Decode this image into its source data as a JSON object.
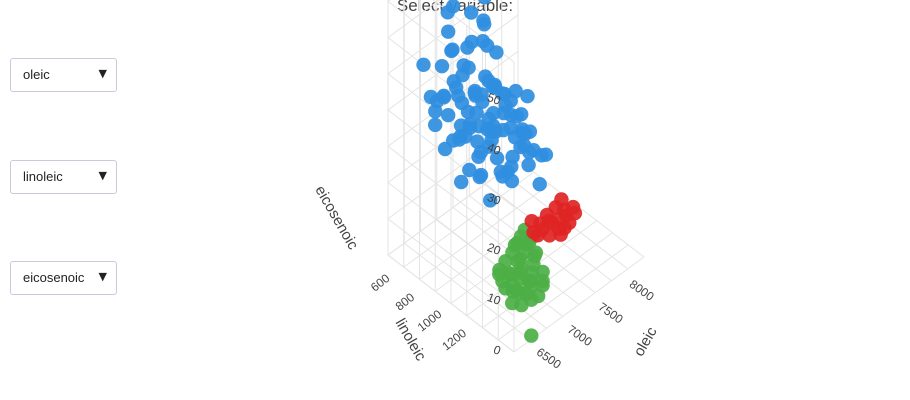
{
  "page_title": "Select variable:",
  "dropdowns": [
    {
      "selected": "oleic"
    },
    {
      "selected": "linoleic"
    },
    {
      "selected": "eicosenoic"
    }
  ],
  "icons": {
    "dropdown_arrow": "triangle-down-icon"
  },
  "colors": {
    "series_blue": "#2f8ee0",
    "series_green": "#4caf45",
    "series_red": "#e02424",
    "grid": "#e4e4e4",
    "text": "#444444"
  },
  "chart_data": {
    "type": "scatter3d",
    "x_axis": {
      "title": "oleic",
      "ticks": [
        6500,
        7000,
        7500,
        8000
      ],
      "tick_labels": [
        "6500",
        "7000",
        "7500",
        "8000"
      ],
      "range": [
        6300,
        8400
      ]
    },
    "y_axis": {
      "title": "linoleic",
      "ticks": [
        600,
        800,
        1000,
        1200
      ],
      "tick_labels": [
        "600",
        "800",
        "1000",
        "1200"
      ],
      "range": [
        448,
        1470
      ]
    },
    "z_axis": {
      "title": "eicosenoic",
      "ticks": [
        0,
        10,
        20,
        30,
        40,
        50
      ],
      "tick_labels": [
        "0",
        "10",
        "20",
        "30",
        "40",
        "50"
      ],
      "range": [
        0,
        58
      ]
    },
    "grid": true,
    "series": [
      {
        "color": "#2f8ee0",
        "points": [
          [
            7250,
            600,
            52
          ],
          [
            7400,
            680,
            46
          ],
          [
            7150,
            550,
            44
          ],
          [
            7300,
            720,
            43
          ],
          [
            7050,
            560,
            40
          ],
          [
            7000,
            620,
            38
          ],
          [
            7200,
            640,
            37
          ],
          [
            7350,
            600,
            36
          ],
          [
            7100,
            700,
            35
          ],
          [
            6950,
            560,
            34
          ],
          [
            7250,
            760,
            33
          ],
          [
            7450,
            640,
            36
          ],
          [
            7600,
            600,
            33
          ],
          [
            7550,
            700,
            34
          ],
          [
            7000,
            650,
            31
          ],
          [
            7100,
            580,
            30
          ],
          [
            7200,
            700,
            29
          ],
          [
            7300,
            560,
            31
          ],
          [
            7400,
            760,
            30
          ],
          [
            7500,
            660,
            28
          ],
          [
            7050,
            720,
            27
          ],
          [
            7150,
            620,
            26
          ],
          [
            7350,
            680,
            27
          ],
          [
            7600,
            740,
            26
          ],
          [
            6900,
            600,
            29
          ],
          [
            6850,
            660,
            27
          ],
          [
            7000,
            760,
            25
          ],
          [
            7250,
            540,
            25
          ],
          [
            7450,
            580,
            24
          ],
          [
            7650,
            640,
            25
          ],
          [
            7550,
            760,
            23
          ],
          [
            7150,
            760,
            24
          ],
          [
            7300,
            800,
            26
          ],
          [
            7700,
            700,
            22
          ],
          [
            7800,
            620,
            22
          ],
          [
            7200,
            660,
            22
          ],
          [
            7050,
            660,
            21
          ],
          [
            7400,
            700,
            20
          ],
          [
            7600,
            560,
            21
          ],
          [
            7750,
            720,
            20
          ],
          [
            7900,
            640,
            20
          ],
          [
            7350,
            760,
            21
          ],
          [
            7050,
            600,
            19
          ],
          [
            7250,
            600,
            18
          ],
          [
            7500,
            720,
            19
          ],
          [
            7650,
            800,
            18
          ],
          [
            7850,
            760,
            17
          ],
          [
            7950,
            700,
            18
          ],
          [
            7100,
            800,
            20
          ],
          [
            6950,
            700,
            22
          ],
          [
            7400,
            620,
            16
          ],
          [
            7300,
            680,
            15
          ],
          [
            7700,
            600,
            16
          ],
          [
            7800,
            800,
            15
          ],
          [
            8000,
            640,
            16
          ],
          [
            7550,
            640,
            14
          ],
          [
            7200,
            740,
            13
          ],
          [
            7000,
            560,
            17
          ],
          [
            8050,
            720,
            14
          ],
          [
            7900,
            580,
            13
          ],
          [
            7600,
            680,
            12
          ],
          [
            7750,
            560,
            12
          ],
          [
            7450,
            800,
            12
          ],
          [
            8100,
            660,
            12
          ],
          [
            7850,
            680,
            10
          ],
          [
            7650,
            740,
            10
          ],
          [
            7350,
            580,
            10
          ],
          [
            7950,
            760,
            9
          ],
          [
            8150,
            700,
            9
          ],
          [
            7500,
            600,
            8
          ],
          [
            7700,
            660,
            8
          ],
          [
            7100,
            640,
            11
          ],
          [
            7250,
            800,
            9
          ],
          [
            7950,
            620,
            6
          ],
          [
            7800,
            700,
            6
          ],
          [
            8200,
            640,
            7
          ],
          [
            8050,
            800,
            5
          ],
          [
            6900,
            740,
            26
          ],
          [
            6800,
            580,
            24
          ],
          [
            7000,
            480,
            23
          ],
          [
            7400,
            500,
            27
          ],
          [
            7600,
            500,
            22
          ],
          [
            7850,
            520,
            21
          ],
          [
            8100,
            580,
            19
          ],
          [
            8250,
            600,
            17
          ],
          [
            6750,
            620,
            30
          ],
          [
            6850,
            520,
            28
          ],
          [
            7300,
            460,
            32
          ],
          [
            7700,
            820,
            16
          ],
          [
            8150,
            800,
            10
          ],
          [
            7500,
            840,
            22
          ],
          [
            7150,
            840,
            27
          ],
          [
            6950,
            840,
            30
          ],
          [
            8000,
            840,
            12
          ],
          [
            7650,
            860,
            20
          ],
          [
            6700,
            700,
            33
          ],
          [
            6650,
            560,
            37
          ],
          [
            7200,
            480,
            41
          ],
          [
            7500,
            520,
            39
          ],
          [
            7750,
            500,
            34
          ]
        ]
      },
      {
        "color": "#4caf45",
        "points": [
          [
            6750,
            1150,
            4
          ],
          [
            6800,
            1100,
            4
          ],
          [
            6850,
            1180,
            3
          ],
          [
            6900,
            1050,
            3
          ],
          [
            6950,
            1120,
            3
          ],
          [
            7000,
            1080,
            2
          ],
          [
            7050,
            1150,
            3
          ],
          [
            7100,
            1000,
            2
          ],
          [
            7150,
            1100,
            2
          ],
          [
            7200,
            1050,
            2
          ],
          [
            7250,
            980,
            2
          ],
          [
            7300,
            1020,
            1
          ],
          [
            7350,
            950,
            2
          ],
          [
            7400,
            1000,
            1
          ],
          [
            7450,
            920,
            1
          ],
          [
            7500,
            960,
            1
          ],
          [
            7550,
            900,
            1
          ],
          [
            7600,
            940,
            0
          ],
          [
            7650,
            880,
            1
          ],
          [
            7700,
            920,
            0
          ],
          [
            6700,
            1200,
            4
          ],
          [
            6780,
            1220,
            3
          ],
          [
            6880,
            1200,
            2
          ],
          [
            6980,
            1180,
            3
          ],
          [
            7080,
            1200,
            2
          ],
          [
            6820,
            1250,
            3
          ],
          [
            6920,
            1260,
            2
          ],
          [
            7020,
            1240,
            2
          ],
          [
            7150,
            1180,
            1
          ],
          [
            7250,
            1140,
            1
          ],
          [
            7350,
            1100,
            1
          ],
          [
            7450,
            1060,
            1
          ],
          [
            7550,
            1020,
            0
          ],
          [
            6650,
            1280,
            3
          ],
          [
            6760,
            1300,
            2
          ],
          [
            6900,
            1310,
            2
          ],
          [
            7050,
            1290,
            1
          ],
          [
            7200,
            1250,
            1
          ],
          [
            7300,
            1200,
            0
          ],
          [
            7400,
            1150,
            0
          ],
          [
            6620,
            1450,
            0
          ]
        ]
      },
      {
        "color": "#e02424",
        "points": [
          [
            7750,
            900,
            0
          ],
          [
            7800,
            860,
            1
          ],
          [
            7850,
            920,
            0
          ],
          [
            7900,
            880,
            0
          ],
          [
            7950,
            950,
            1
          ],
          [
            8000,
            900,
            0
          ],
          [
            8050,
            860,
            0
          ],
          [
            8100,
            930,
            0
          ],
          [
            8150,
            880,
            1
          ],
          [
            8200,
            940,
            0
          ],
          [
            8250,
            900,
            0
          ],
          [
            8300,
            960,
            0
          ],
          [
            7700,
            960,
            1
          ],
          [
            7850,
            980,
            0
          ],
          [
            8000,
            980,
            0
          ],
          [
            8150,
            990,
            0
          ],
          [
            8050,
            1000,
            0
          ],
          [
            7950,
            1020,
            0
          ],
          [
            8280,
            860,
            1
          ],
          [
            8350,
            920,
            0
          ]
        ]
      }
    ]
  }
}
